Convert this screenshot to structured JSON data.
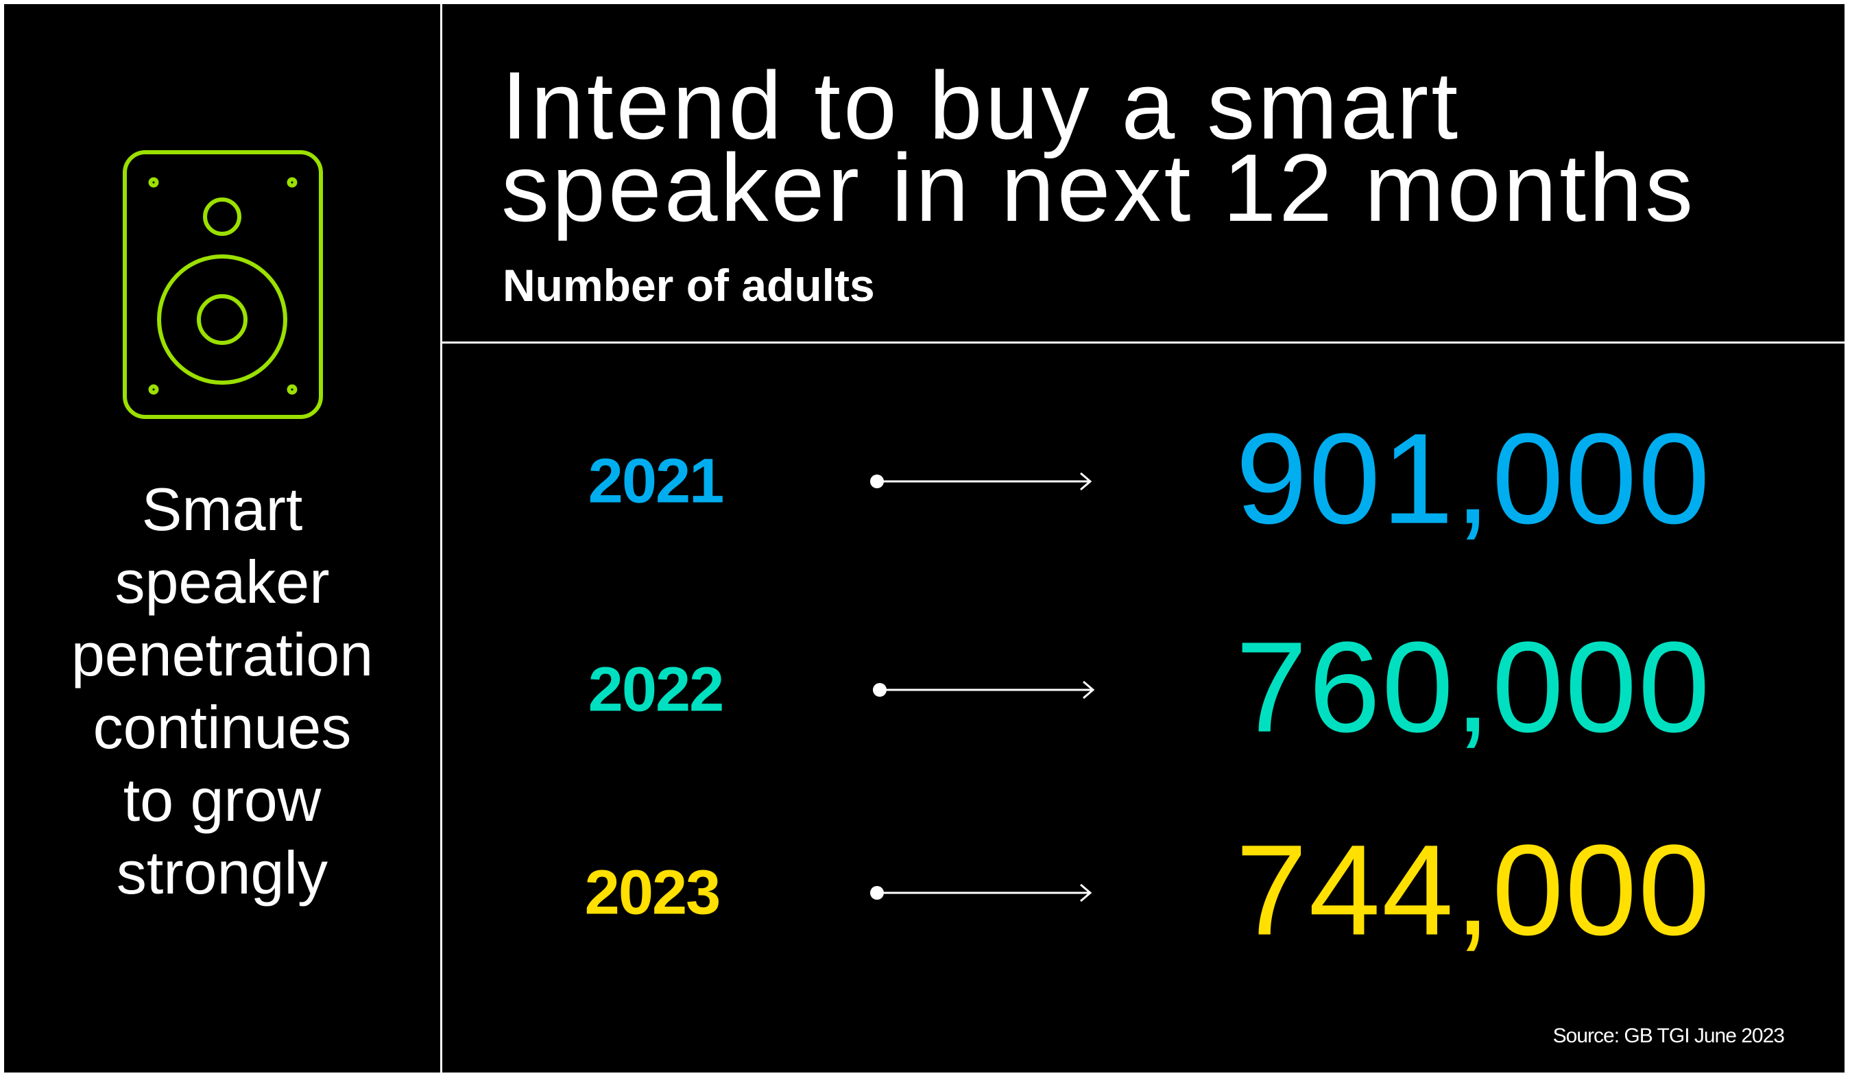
{
  "sidebar": {
    "icon": "speaker-icon",
    "icon_color": "#9BE000",
    "lines": [
      "Smart",
      "speaker",
      "penetration",
      "continues",
      "to grow",
      "strongly"
    ]
  },
  "header": {
    "title_lines": [
      "Intend to buy a smart",
      "speaker in next 12 months"
    ],
    "subtitle": "Number of adults"
  },
  "rows": [
    {
      "year": "2021",
      "value": "901,000",
      "color": "#00AEEF"
    },
    {
      "year": "2022",
      "value": "760,000",
      "color": "#00E0C0"
    },
    {
      "year": "2023",
      "value": "744,000",
      "color": "#FFE000"
    }
  ],
  "source": "Source: GB TGI June 2023"
}
